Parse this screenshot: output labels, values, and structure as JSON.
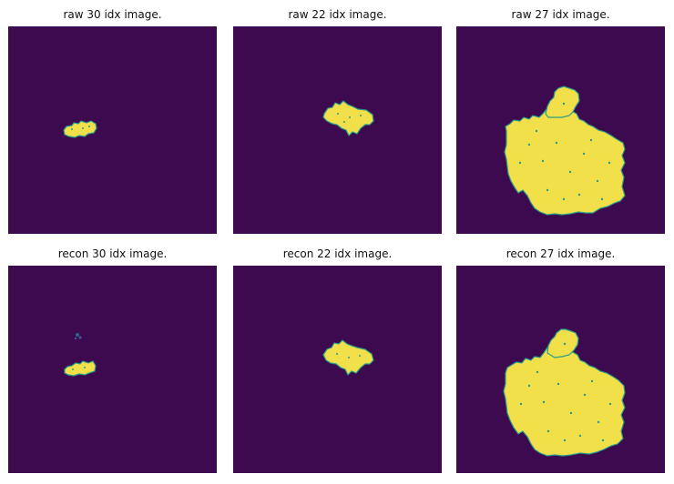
{
  "figure": {
    "colors": {
      "background": "#3d0a4f",
      "foreground": "#f1e04a",
      "edge": "#2a9c8a"
    },
    "panels": [
      {
        "title": "raw 30 idx image.",
        "row": "raw",
        "idx": 30
      },
      {
        "title": "raw 22 idx image.",
        "row": "raw",
        "idx": 22
      },
      {
        "title": "raw 27 idx image.",
        "row": "raw",
        "idx": 27
      },
      {
        "title": "recon 30 idx image.",
        "row": "recon",
        "idx": 30
      },
      {
        "title": "recon 22 idx image.",
        "row": "recon",
        "idx": 22
      },
      {
        "title": "recon 27 idx image.",
        "row": "recon",
        "idx": 27
      }
    ]
  }
}
